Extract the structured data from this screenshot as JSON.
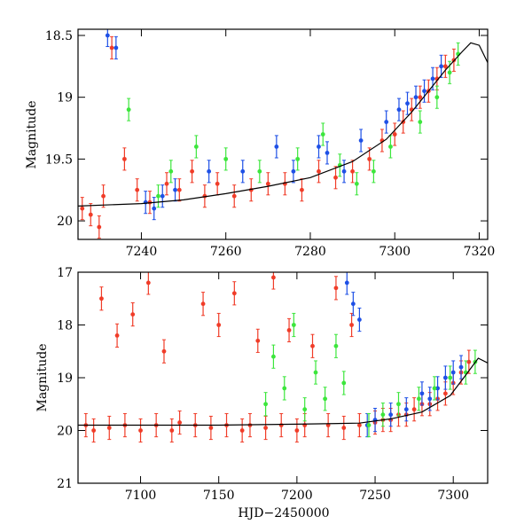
{
  "chart_data": [
    {
      "type": "scatter",
      "title": "",
      "xlabel": "",
      "ylabel": "Magnitude",
      "xlim": [
        7225,
        7322
      ],
      "ylim": [
        20.15,
        18.45
      ],
      "y_inverted": true,
      "xticks": [
        7240,
        7260,
        7280,
        7300,
        7320
      ],
      "yticks": [
        18.5,
        19,
        19.5,
        20
      ],
      "ytick_labels": [
        "18.5",
        "19",
        "19.5",
        "20"
      ],
      "series": [
        {
          "name": "red",
          "color": "#f03c28",
          "points": [
            [
              7226,
              19.9
            ],
            [
              7228,
              19.95
            ],
            [
              7230,
              20.05
            ],
            [
              7231,
              19.8
            ],
            [
              7233,
              18.6
            ],
            [
              7236,
              19.5
            ],
            [
              7239,
              19.75
            ],
            [
              7242,
              19.85
            ],
            [
              7246,
              19.7
            ],
            [
              7249,
              19.75
            ],
            [
              7252,
              19.6
            ],
            [
              7255,
              19.8
            ],
            [
              7258,
              19.7
            ],
            [
              7262,
              19.8
            ],
            [
              7266,
              19.75
            ],
            [
              7270,
              19.7
            ],
            [
              7274,
              19.7
            ],
            [
              7278,
              19.75
            ],
            [
              7282,
              19.6
            ],
            [
              7286,
              19.65
            ],
            [
              7290,
              19.6
            ],
            [
              7294,
              19.5
            ],
            [
              7297,
              19.35
            ],
            [
              7300,
              19.3
            ],
            [
              7302,
              19.2
            ],
            [
              7304,
              19.1
            ],
            [
              7306,
              19.0
            ],
            [
              7308,
              18.95
            ],
            [
              7310,
              18.85
            ],
            [
              7312,
              18.75
            ],
            [
              7314,
              18.7
            ]
          ]
        },
        {
          "name": "blue",
          "color": "#1e50e6",
          "points": [
            [
              7232,
              18.5
            ],
            [
              7234,
              18.6
            ],
            [
              7241,
              19.85
            ],
            [
              7243,
              19.9
            ],
            [
              7245,
              19.8
            ],
            [
              7248,
              19.75
            ],
            [
              7256,
              19.6
            ],
            [
              7264,
              19.6
            ],
            [
              7272,
              19.4
            ],
            [
              7276,
              19.6
            ],
            [
              7282,
              19.4
            ],
            [
              7284,
              19.45
            ],
            [
              7288,
              19.6
            ],
            [
              7292,
              19.35
            ],
            [
              7298,
              19.2
            ],
            [
              7301,
              19.1
            ],
            [
              7303,
              19.05
            ],
            [
              7305,
              19.0
            ],
            [
              7307,
              18.95
            ],
            [
              7309,
              18.85
            ],
            [
              7311,
              18.75
            ]
          ]
        },
        {
          "name": "green",
          "color": "#3ce63c",
          "points": [
            [
              7237,
              19.1
            ],
            [
              7244,
              19.8
            ],
            [
              7247,
              19.6
            ],
            [
              7253,
              19.4
            ],
            [
              7260,
              19.5
            ],
            [
              7268,
              19.6
            ],
            [
              7277,
              19.5
            ],
            [
              7283,
              19.3
            ],
            [
              7287,
              19.55
            ],
            [
              7291,
              19.7
            ],
            [
              7295,
              19.6
            ],
            [
              7299,
              19.4
            ],
            [
              7306,
              19.2
            ],
            [
              7310,
              19.0
            ],
            [
              7313,
              18.8
            ],
            [
              7315,
              18.65
            ]
          ]
        }
      ],
      "model_curve": {
        "color": "#000000",
        "points": [
          [
            7225,
            19.88
          ],
          [
            7240,
            19.86
          ],
          [
            7250,
            19.83
          ],
          [
            7260,
            19.78
          ],
          [
            7270,
            19.72
          ],
          [
            7280,
            19.65
          ],
          [
            7290,
            19.52
          ],
          [
            7298,
            19.34
          ],
          [
            7304,
            19.12
          ],
          [
            7308,
            18.95
          ],
          [
            7312,
            18.78
          ],
          [
            7316,
            18.63
          ],
          [
            7318,
            18.56
          ],
          [
            7320,
            18.58
          ],
          [
            7322,
            18.72
          ]
        ]
      }
    },
    {
      "type": "scatter",
      "title": "",
      "xlabel": "HJD−2450000",
      "ylabel": "Magnitude",
      "xlim": [
        7060,
        7322
      ],
      "ylim": [
        21,
        17
      ],
      "y_inverted": true,
      "xticks": [
        7100,
        7150,
        7200,
        7250,
        7300
      ],
      "yticks": [
        17,
        18,
        19,
        20,
        21
      ],
      "ytick_labels": [
        "17",
        "18",
        "19",
        "20",
        "21"
      ],
      "series": [
        {
          "name": "red",
          "color": "#f03c28",
          "points": [
            [
              7065,
              19.9
            ],
            [
              7070,
              20.0
            ],
            [
              7075,
              17.5
            ],
            [
              7080,
              19.95
            ],
            [
              7085,
              18.2
            ],
            [
              7090,
              19.9
            ],
            [
              7095,
              17.8
            ],
            [
              7100,
              20.0
            ],
            [
              7105,
              17.2
            ],
            [
              7110,
              19.9
            ],
            [
              7115,
              18.5
            ],
            [
              7120,
              20.0
            ],
            [
              7125,
              19.85
            ],
            [
              7135,
              19.9
            ],
            [
              7140,
              17.6
            ],
            [
              7145,
              19.95
            ],
            [
              7150,
              18.0
            ],
            [
              7155,
              19.9
            ],
            [
              7160,
              17.4
            ],
            [
              7165,
              20.0
            ],
            [
              7170,
              19.9
            ],
            [
              7175,
              18.3
            ],
            [
              7180,
              19.95
            ],
            [
              7185,
              17.1
            ],
            [
              7190,
              19.9
            ],
            [
              7195,
              18.1
            ],
            [
              7200,
              20.0
            ],
            [
              7205,
              19.9
            ],
            [
              7210,
              18.4
            ],
            [
              7220,
              19.9
            ],
            [
              7225,
              17.3
            ],
            [
              7230,
              19.95
            ],
            [
              7235,
              18.0
            ],
            [
              7240,
              19.9
            ],
            [
              7250,
              19.85
            ],
            [
              7255,
              19.8
            ],
            [
              7260,
              19.8
            ],
            [
              7265,
              19.7
            ],
            [
              7270,
              19.7
            ],
            [
              7275,
              19.6
            ],
            [
              7280,
              19.5
            ],
            [
              7285,
              19.5
            ],
            [
              7290,
              19.4
            ],
            [
              7295,
              19.3
            ],
            [
              7300,
              19.1
            ],
            [
              7305,
              18.9
            ],
            [
              7310,
              18.7
            ]
          ]
        },
        {
          "name": "blue",
          "color": "#1e50e6",
          "points": [
            [
              7232,
              17.2
            ],
            [
              7236,
              17.6
            ],
            [
              7240,
              17.9
            ],
            [
              7245,
              19.9
            ],
            [
              7250,
              19.8
            ],
            [
              7260,
              19.7
            ],
            [
              7270,
              19.6
            ],
            [
              7280,
              19.3
            ],
            [
              7285,
              19.4
            ],
            [
              7290,
              19.2
            ],
            [
              7295,
              19.0
            ],
            [
              7300,
              18.9
            ],
            [
              7305,
              18.8
            ]
          ]
        },
        {
          "name": "green",
          "color": "#3ce63c",
          "points": [
            [
              7180,
              19.5
            ],
            [
              7185,
              18.6
            ],
            [
              7192,
              19.2
            ],
            [
              7198,
              18.0
            ],
            [
              7205,
              19.6
            ],
            [
              7212,
              18.9
            ],
            [
              7218,
              19.4
            ],
            [
              7225,
              18.4
            ],
            [
              7230,
              19.1
            ],
            [
              7246,
              19.9
            ],
            [
              7255,
              19.7
            ],
            [
              7265,
              19.5
            ],
            [
              7278,
              19.4
            ],
            [
              7288,
              19.2
            ],
            [
              7298,
              19.0
            ],
            [
              7308,
              18.9
            ],
            [
              7314,
              18.7
            ]
          ]
        }
      ],
      "model_curve": {
        "color": "#000000",
        "points": [
          [
            7060,
            19.9
          ],
          [
            7150,
            19.9
          ],
          [
            7200,
            19.88
          ],
          [
            7240,
            19.86
          ],
          [
            7260,
            19.78
          ],
          [
            7280,
            19.65
          ],
          [
            7298,
            19.34
          ],
          [
            7308,
            18.95
          ],
          [
            7316,
            18.63
          ],
          [
            7322,
            18.72
          ]
        ]
      }
    }
  ]
}
